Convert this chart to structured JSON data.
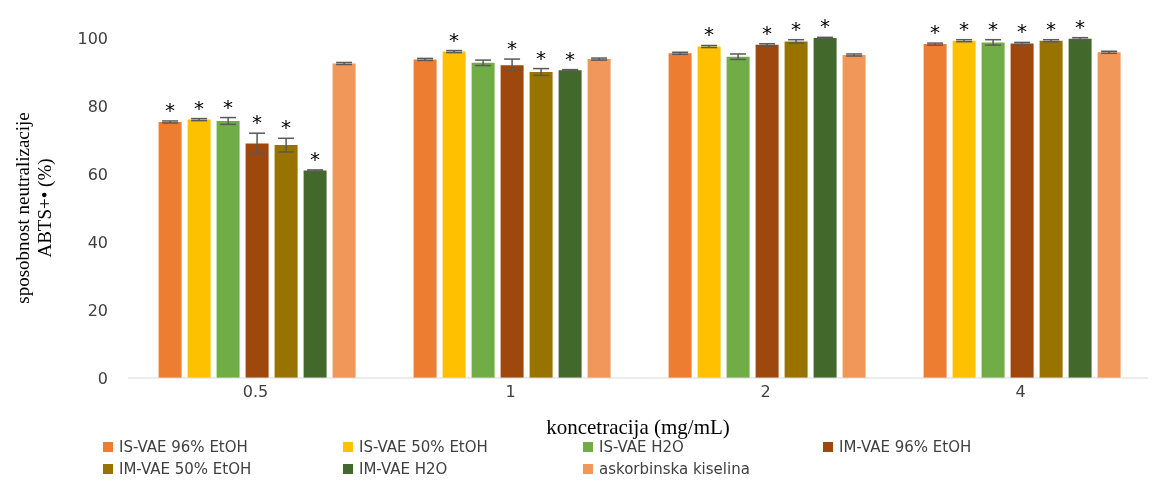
{
  "chart_data": {
    "type": "bar",
    "xlabel": "koncetracija (mg/mL)",
    "ylabel": "sposobnost neutralizacije ABTS+• (%)",
    "categories": [
      "0.5",
      "1",
      "2",
      "4"
    ],
    "ylim": [
      0,
      100
    ],
    "yticks": [
      0,
      20,
      40,
      60,
      80,
      100
    ],
    "grid": false,
    "legend": "bottom",
    "series": [
      {
        "name": "IS-VAE 96% EtOH",
        "color": "#ed7d31",
        "values": [
          75.3,
          93.7,
          95.5,
          98.2
        ],
        "errors": [
          0.3,
          0.3,
          0.3,
          0.3
        ],
        "value_labels": [
          "*",
          null,
          null,
          "*"
        ]
      },
      {
        "name": "IS-VAE 50% EtOH",
        "color": "#ffc000",
        "values": [
          76,
          96,
          97.5,
          99.2
        ],
        "errors": [
          0.3,
          0.3,
          0.3,
          0.3
        ],
        "value_labels": [
          "*",
          "*",
          "*",
          "*"
        ]
      },
      {
        "name": "IS-VAE H2O",
        "color": "#70ad47",
        "values": [
          75.6,
          92.7,
          94.5,
          98.7
        ],
        "errors": [
          1,
          0.8,
          0.8,
          0.8
        ],
        "value_labels": [
          "*",
          null,
          null,
          "*"
        ]
      },
      {
        "name": "IM-VAE 96% EtOH",
        "color": "#9e480e",
        "values": [
          69,
          92,
          98,
          98.4
        ],
        "errors": [
          3,
          1.8,
          0.3,
          0.3
        ],
        "value_labels": [
          "*",
          "*",
          "*",
          "*"
        ]
      },
      {
        "name": "IM-VAE 50% EtOH",
        "color": "#997300",
        "values": [
          68.5,
          90,
          99,
          99.2
        ],
        "errors": [
          2,
          1,
          0.5,
          0.3
        ],
        "value_labels": [
          "*",
          "*",
          "*",
          "*"
        ]
      },
      {
        "name": "IM-VAE H2O",
        "color": "#43682b",
        "values": [
          61,
          90.5,
          100,
          99.8
        ],
        "errors": [
          0.2,
          0.2,
          0.2,
          0.3
        ],
        "value_labels": [
          "*",
          "*",
          "*",
          "*"
        ]
      },
      {
        "name": "askorbinska kiselina",
        "color": "#f1975a",
        "values": [
          92.5,
          93.8,
          95,
          95.8
        ],
        "errors": [
          0.3,
          0.3,
          0.3,
          0.3
        ],
        "value_labels": [
          null,
          null,
          null,
          null
        ]
      }
    ]
  }
}
